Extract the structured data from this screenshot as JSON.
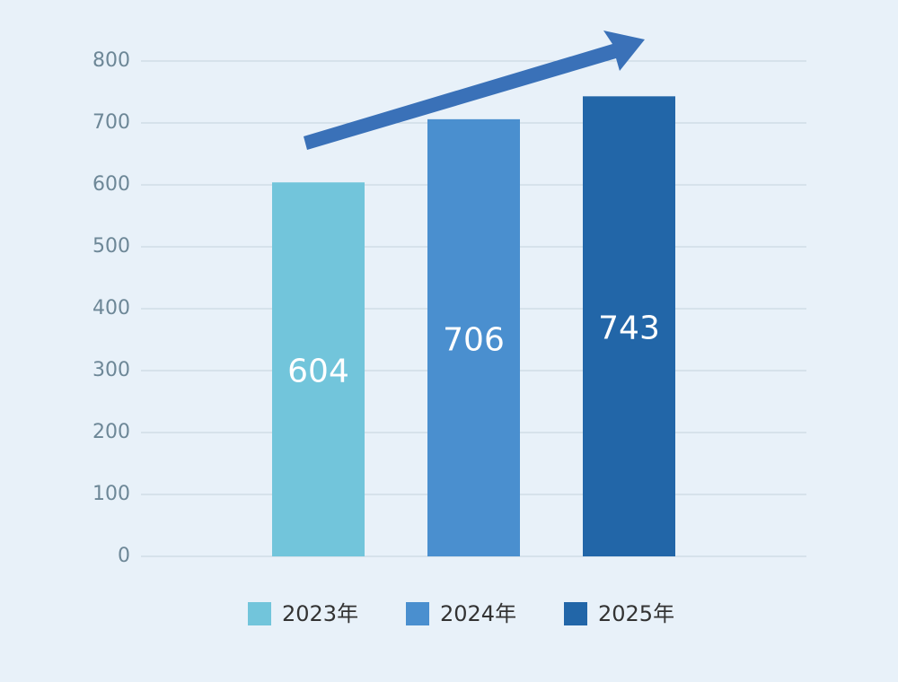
{
  "chart_data": {
    "type": "bar",
    "categories": [
      "2023年",
      "2024年",
      "2025年"
    ],
    "values": [
      604,
      706,
      743
    ],
    "colors": [
      "#72c5db",
      "#4a8fcf",
      "#2266a8"
    ],
    "ylim": [
      0,
      800
    ],
    "yticks": [
      0,
      100,
      200,
      300,
      400,
      500,
      600,
      700,
      800
    ],
    "grid": true,
    "legend": "bottom"
  }
}
